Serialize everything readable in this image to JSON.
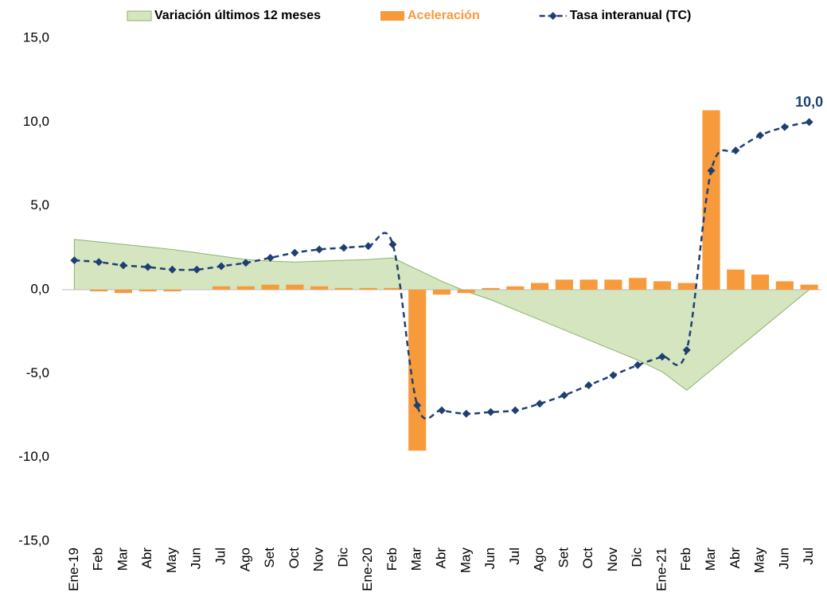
{
  "chart_data": {
    "type": "combo",
    "categories": [
      "Ene-19",
      "Feb",
      "Mar",
      "Abr",
      "May",
      "Jun",
      "Jul",
      "Ago",
      "Set",
      "Oct",
      "Nov",
      "Dic",
      "Ene-20",
      "Feb",
      "Mar",
      "Abr",
      "May",
      "Jun",
      "Jul",
      "Ago",
      "Set",
      "Oct",
      "Nov",
      "Dic",
      "Ene-21",
      "Feb",
      "Mar",
      "Abr",
      "May",
      "Jun",
      "Jul"
    ],
    "series": [
      {
        "name": "Variación últimos 12 meses",
        "kind": "area",
        "color": "#d5e5bf",
        "values": [
          3.0,
          2.85,
          2.7,
          2.55,
          2.4,
          2.2,
          2.0,
          1.8,
          1.7,
          1.65,
          1.7,
          1.75,
          1.8,
          1.9,
          1.2,
          0.5,
          -0.1,
          -0.6,
          -1.2,
          -1.8,
          -2.4,
          -3.0,
          -3.6,
          -4.2,
          -4.9,
          -6.0,
          -4.8,
          -3.6,
          -2.4,
          -1.2,
          0.0
        ]
      },
      {
        "name": "Aceleración",
        "kind": "bar",
        "color": "#f79a3c",
        "values": [
          null,
          -0.1,
          -0.2,
          -0.1,
          -0.1,
          0.0,
          0.2,
          0.2,
          0.3,
          0.3,
          0.2,
          0.1,
          0.1,
          0.1,
          -9.6,
          -0.3,
          -0.2,
          0.1,
          0.2,
          0.4,
          0.6,
          0.6,
          0.6,
          0.7,
          0.5,
          0.4,
          10.7,
          1.2,
          0.9,
          0.5,
          0.3
        ]
      },
      {
        "name": "Tasa interanual (TC)",
        "kind": "line",
        "color": "#1f3f73",
        "values": [
          1.75,
          1.65,
          1.45,
          1.35,
          1.2,
          1.2,
          1.4,
          1.6,
          1.9,
          2.2,
          2.4,
          2.5,
          2.6,
          2.7,
          -6.9,
          -7.2,
          -7.4,
          -7.3,
          -7.2,
          -6.8,
          -6.3,
          -5.7,
          -5.1,
          -4.5,
          -4.0,
          -3.6,
          7.1,
          8.3,
          9.2,
          9.7,
          10.0
        ],
        "value_labels": [
          null,
          null,
          null,
          null,
          null,
          null,
          null,
          null,
          null,
          null,
          null,
          null,
          null,
          null,
          null,
          null,
          null,
          null,
          null,
          null,
          null,
          null,
          null,
          null,
          null,
          null,
          null,
          null,
          null,
          null,
          "10,0"
        ]
      }
    ],
    "ylim": [
      -15,
      15
    ],
    "yticks": [
      {
        "value": -15,
        "label": "-15,0"
      },
      {
        "value": -10,
        "label": "-10,0"
      },
      {
        "value": -5,
        "label": "-5,0"
      },
      {
        "value": 0,
        "label": "0,0"
      },
      {
        "value": 5,
        "label": "5,0"
      },
      {
        "value": 10,
        "label": "10,0"
      },
      {
        "value": 15,
        "label": "15,0"
      }
    ],
    "legend": "top"
  }
}
